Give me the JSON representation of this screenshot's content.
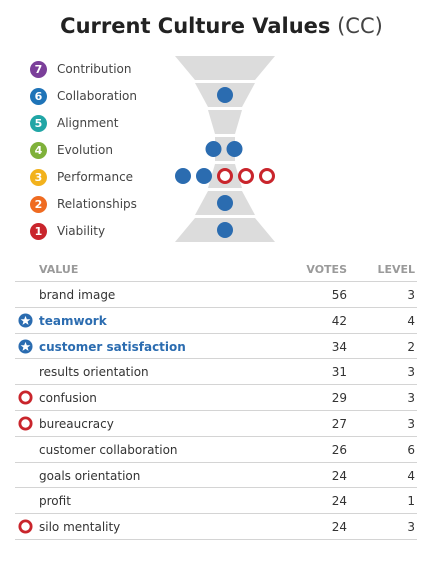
{
  "header": {
    "title": "Current Culture Values",
    "subtitle": "(CC)"
  },
  "levels": [
    {
      "num": "7",
      "label": "Contribution",
      "color": "#7b3f9a",
      "dots": []
    },
    {
      "num": "6",
      "label": "Collaboration",
      "color": "#1f74b8",
      "dots": [
        "blue"
      ]
    },
    {
      "num": "5",
      "label": "Alignment",
      "color": "#21a6a6",
      "dots": []
    },
    {
      "num": "4",
      "label": "Evolution",
      "color": "#7fb13a",
      "dots": [
        "blue",
        "blue"
      ]
    },
    {
      "num": "3",
      "label": "Performance",
      "color": "#f2b21d",
      "dots": [
        "blue",
        "blue",
        "red",
        "red",
        "red"
      ]
    },
    {
      "num": "2",
      "label": "Relationships",
      "color": "#ef6b21",
      "dots": [
        "blue"
      ]
    },
    {
      "num": "1",
      "label": "Viability",
      "color": "#c9252c",
      "dots": [
        "blue"
      ]
    }
  ],
  "table": {
    "headers": {
      "value": "VALUE",
      "votes": "VOTES",
      "level": "LEVEL"
    },
    "rows": [
      {
        "name": "brand image",
        "votes": "56",
        "level": "3",
        "marker": "none"
      },
      {
        "name": "teamwork",
        "votes": "42",
        "level": "4",
        "marker": "star"
      },
      {
        "name": "customer satisfaction",
        "votes": "34",
        "level": "2",
        "marker": "star"
      },
      {
        "name": "results orientation",
        "votes": "31",
        "level": "3",
        "marker": "none"
      },
      {
        "name": "confusion",
        "votes": "29",
        "level": "3",
        "marker": "ring"
      },
      {
        "name": "bureaucracy",
        "votes": "27",
        "level": "3",
        "marker": "ring"
      },
      {
        "name": "customer collaboration",
        "votes": "26",
        "level": "6",
        "marker": "none"
      },
      {
        "name": "goals orientation",
        "votes": "24",
        "level": "4",
        "marker": "none"
      },
      {
        "name": "profit",
        "votes": "24",
        "level": "1",
        "marker": "none"
      },
      {
        "name": "silo mentality",
        "votes": "24",
        "level": "3",
        "marker": "ring"
      }
    ]
  },
  "colors": {
    "positive": "#2b6cb0",
    "limiting": "#c9252c",
    "hourglass": "#dcdcdc"
  }
}
